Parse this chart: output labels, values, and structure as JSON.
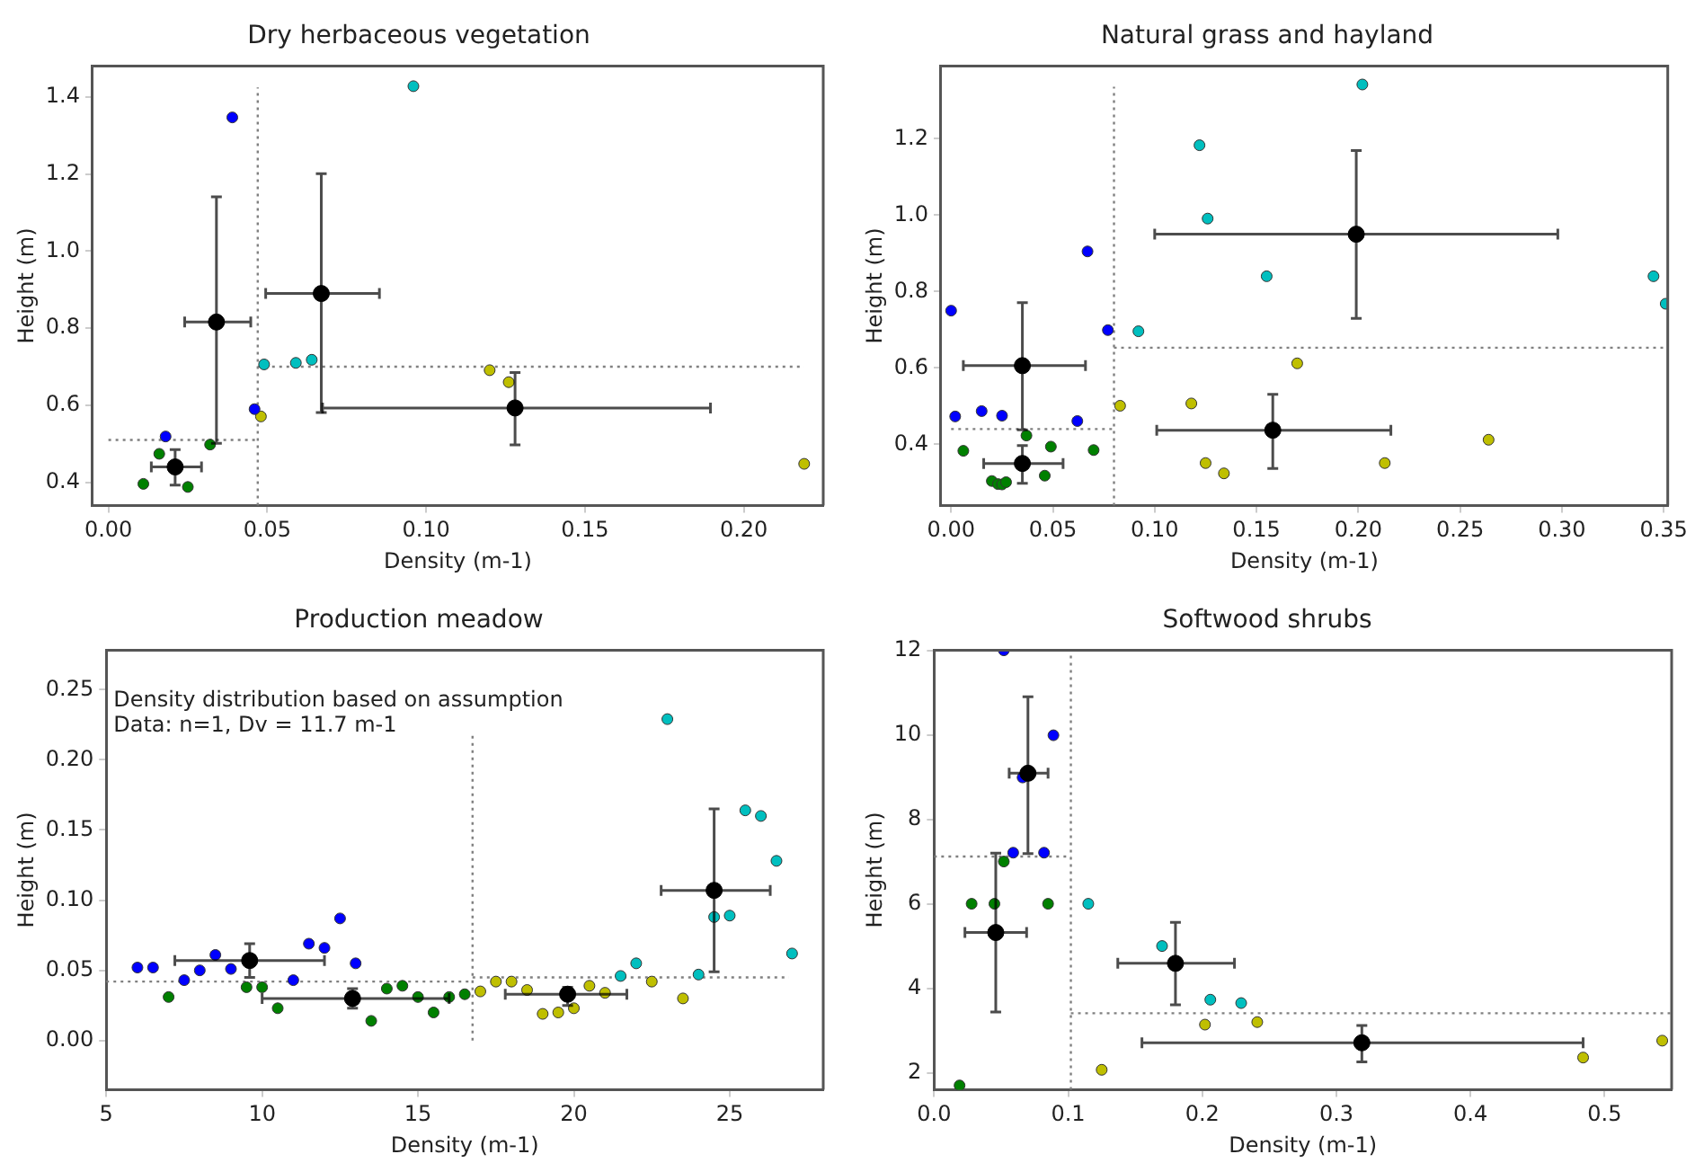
{
  "chart_data": [
    {
      "type": "scatter",
      "title": "Dry herbaceous vegetation",
      "xlabel": "Density (m-1)",
      "ylabel": "Height (m)",
      "xlim": [
        -0.005,
        0.225
      ],
      "ylim": [
        0.34,
        1.48
      ],
      "xticks": [
        {
          "value": 0,
          "label": "0.00"
        },
        0.05,
        {
          "value": 0.1,
          "label": "0.10"
        },
        0.15,
        {
          "value": 0.2,
          "label": "0.20"
        }
      ],
      "yticks": [
        0.4,
        0.6,
        0.8,
        {
          "value": 1,
          "label": "1.0"
        },
        1.2,
        1.4
      ],
      "grid": false,
      "legend": false,
      "marker": "circle",
      "series": [
        {
          "color": "#0000ff",
          "x": [
            0.039,
            0.018,
            0.046
          ],
          "values": [
            1.347,
            0.519,
            0.59
          ]
        },
        {
          "color": "#008000",
          "x": [
            0.011,
            0.016,
            0.025,
            0.032
          ],
          "values": [
            0.396,
            0.474,
            0.388,
            0.498
          ]
        },
        {
          "color": "#00bfbf",
          "x": [
            0.096,
            0.049,
            0.059,
            0.064
          ],
          "values": [
            1.428,
            0.706,
            0.71,
            0.718
          ]
        },
        {
          "color": "#bfbf00",
          "x": [
            0.048,
            0.12,
            0.126,
            0.219
          ],
          "values": [
            0.571,
            0.691,
            0.66,
            0.448
          ]
        },
        {
          "color": "#000000",
          "x": [
            0.021,
            0.034,
            0.067,
            0.128
          ],
          "values": [
            0.44,
            0.816,
            0.89,
            0.593
          ],
          "xerrors": [
            [
              0.0135,
              0.0293
            ],
            [
              0.024,
              0.0448
            ],
            [
              0.0495,
              0.0853
            ],
            [
              0.0674,
              0.1895
            ]
          ],
          "errors": [
            [
              0.393,
              0.485
            ],
            [
              0.501,
              1.141
            ],
            [
              0.581,
              1.201
            ],
            [
              0.497,
              0.685
            ]
          ]
        },
        {
          "type": "line",
          "color": "#808080",
          "line_style": "dotted",
          "marker": "none",
          "x": [
            0.047,
            0.047
          ],
          "values": [
            0.34,
            1.425
          ]
        },
        {
          "type": "line",
          "color": "#808080",
          "line_style": "dotted",
          "marker": "none",
          "x": [
            0,
            0.047
          ],
          "values": [
            0.51,
            0.51
          ]
        },
        {
          "type": "line",
          "color": "#808080",
          "line_style": "dotted",
          "marker": "none",
          "x": [
            0.047,
            0.219
          ],
          "values": [
            0.7,
            0.7
          ]
        }
      ]
    },
    {
      "type": "scatter",
      "title": "Natural grass and hayland",
      "xlabel": "Density (m-1)",
      "ylabel": "Height (m)",
      "xlim": [
        -0.005,
        0.352
      ],
      "ylim": [
        0.24,
        1.39
      ],
      "xticks": [
        {
          "value": 0,
          "label": "0.00"
        },
        0.05,
        {
          "value": 0.1,
          "label": "0.10"
        },
        0.15,
        {
          "value": 0.2,
          "label": "0.20"
        },
        0.25,
        {
          "value": 0.3,
          "label": "0.30"
        },
        0.35
      ],
      "yticks": [
        0.4,
        0.6,
        0.8,
        {
          "value": 1,
          "label": "1.0"
        },
        1.2
      ],
      "grid": false,
      "legend": false,
      "marker": "circle",
      "series": [
        {
          "color": "#0000ff",
          "x": [
            0,
            0.002,
            0.015,
            0.025,
            0.067,
            0.062,
            0.077
          ],
          "values": [
            0.75,
            0.473,
            0.487,
            0.475,
            0.905,
            0.461,
            0.699
          ]
        },
        {
          "color": "#008000",
          "x": [
            0.006,
            0.02,
            0.023,
            0.025,
            0.027,
            0.037,
            0.049,
            0.046,
            0.07
          ],
          "values": [
            0.383,
            0.304,
            0.296,
            0.295,
            0.301,
            0.423,
            0.394,
            0.318,
            0.385
          ]
        },
        {
          "color": "#00bfbf",
          "x": [
            0.202,
            0.122,
            0.126,
            0.155,
            0.092,
            0.345,
            0.351
          ],
          "values": [
            1.342,
            1.183,
            0.991,
            0.84,
            0.696,
            0.84,
            0.768
          ]
        },
        {
          "color": "#bfbf00",
          "x": [
            0.083,
            0.118,
            0.17,
            0.125,
            0.134,
            0.213,
            0.264
          ],
          "values": [
            0.501,
            0.507,
            0.612,
            0.351,
            0.324,
            0.351,
            0.412
          ]
        },
        {
          "color": "#000000",
          "x": [
            0.035,
            0.035,
            0.199,
            0.158
          ],
          "values": [
            0.606,
            0.35,
            0.95,
            0.437
          ],
          "xerrors": [
            [
              0.006,
              0.066
            ],
            [
              0.016,
              0.055
            ],
            [
              0.1,
              0.298
            ],
            [
              0.101,
              0.216
            ]
          ],
          "errors": [
            [
              0.438,
              0.771
            ],
            [
              0.298,
              0.397
            ],
            [
              0.73,
              1.169
            ],
            [
              0.337,
              0.531
            ]
          ]
        },
        {
          "type": "line",
          "color": "#808080",
          "line_style": "dotted",
          "marker": "none",
          "x": [
            0.08,
            0.08
          ],
          "values": [
            0.24,
            1.336
          ]
        },
        {
          "type": "line",
          "color": "#808080",
          "line_style": "dotted",
          "marker": "none",
          "x": [
            0,
            0.08
          ],
          "values": [
            0.44,
            0.44
          ]
        },
        {
          "type": "line",
          "color": "#808080",
          "line_style": "dotted",
          "marker": "none",
          "x": [
            0.08,
            0.35
          ],
          "values": [
            0.653,
            0.653
          ]
        }
      ]
    },
    {
      "type": "scatter",
      "title": "Production meadow",
      "xlabel": "Density (m-1)",
      "ylabel": "Height (m)",
      "xlim": [
        5,
        28
      ],
      "ylim": [
        -0.035,
        0.278
      ],
      "xticks": [
        5,
        10,
        15,
        20,
        25
      ],
      "yticks": [
        {
          "value": 0,
          "label": "0.00"
        },
        0.05,
        {
          "value": 0.1,
          "label": "0.10"
        },
        0.15,
        {
          "value": 0.2,
          "label": "0.20"
        },
        0.25
      ],
      "grid": false,
      "legend": false,
      "marker": "circle",
      "annotations": [
        "Density distribution based on assumption",
        "Data: n=1, Dv = 11.7 m-1"
      ],
      "series": [
        {
          "color": "#0000ff",
          "x": [
            6,
            6.5,
            7.5,
            8,
            8.5,
            9,
            11,
            11.5,
            12,
            12.5,
            13
          ],
          "values": [
            0.052,
            0.052,
            0.043,
            0.05,
            0.061,
            0.051,
            0.043,
            0.069,
            0.066,
            0.087,
            0.055
          ]
        },
        {
          "color": "#008000",
          "x": [
            7,
            9.5,
            10,
            10.5,
            13.5,
            14,
            14.5,
            15,
            15.5,
            16,
            16.5
          ],
          "values": [
            0.031,
            0.038,
            0.038,
            0.023,
            0.014,
            0.037,
            0.039,
            0.031,
            0.02,
            0.031,
            0.033
          ]
        },
        {
          "color": "#bfbf00",
          "x": [
            17,
            17.5,
            18,
            18.5,
            19,
            19.5,
            20,
            20.5,
            21,
            22.5,
            23.5
          ],
          "values": [
            0.035,
            0.042,
            0.042,
            0.036,
            0.019,
            0.02,
            0.023,
            0.039,
            0.034,
            0.042,
            0.03
          ]
        },
        {
          "color": "#00bfbf",
          "x": [
            21.5,
            22,
            23,
            24,
            24.5,
            25,
            25.5,
            26,
            26.5,
            27
          ],
          "values": [
            0.046,
            0.055,
            0.229,
            0.047,
            0.088,
            0.089,
            0.164,
            0.16,
            0.128,
            0.062
          ]
        },
        {
          "color": "#000000",
          "x": [
            9.6,
            12.9,
            19.8,
            24.5
          ],
          "values": [
            0.057,
            0.03,
            0.033,
            0.107
          ],
          "xerrors": [
            [
              7.2,
              12
            ],
            [
              10,
              16
            ],
            [
              17.8,
              21.7
            ],
            [
              22.8,
              26.3
            ]
          ],
          "errors": [
            [
              0.045,
              0.069
            ],
            [
              0.023,
              0.037
            ],
            [
              0.025,
              0.038
            ],
            [
              0.049,
              0.165
            ]
          ]
        },
        {
          "type": "line",
          "color": "#808080",
          "line_style": "dotted",
          "marker": "none",
          "x": [
            16.75,
            16.75
          ],
          "values": [
            0,
            0.219
          ]
        },
        {
          "type": "line",
          "color": "#808080",
          "line_style": "dotted",
          "marker": "none",
          "x": [
            5,
            16.75
          ],
          "values": [
            0.042,
            0.042
          ]
        },
        {
          "type": "line",
          "color": "#808080",
          "line_style": "dotted",
          "marker": "none",
          "x": [
            16.75,
            26.9
          ],
          "values": [
            0.045,
            0.045
          ]
        }
      ]
    },
    {
      "type": "scatter",
      "title": "Softwood shrubs",
      "xlabel": "Density (m-1)",
      "ylabel": "Height (m)",
      "xlim": [
        0,
        0.55
      ],
      "ylim": [
        1.6,
        12
      ],
      "xticks": [
        {
          "value": 0,
          "label": "0.0"
        },
        0.1,
        0.2,
        0.3,
        0.4,
        0.5
      ],
      "yticks": [
        2,
        4,
        6,
        8,
        10,
        12
      ],
      "grid": false,
      "legend": false,
      "marker": "circle",
      "series": [
        {
          "color": "#0000ff",
          "x": [
            0.052,
            0.089,
            0.066,
            0.059,
            0.082
          ],
          "values": [
            12,
            9.99,
            8.99,
            7.21,
            7.21
          ]
        },
        {
          "color": "#008000",
          "x": [
            0.019,
            0.028,
            0.045,
            0.052,
            0.085
          ],
          "values": [
            1.7,
            6,
            6,
            7,
            6
          ]
        },
        {
          "color": "#00bfbf",
          "x": [
            0.115,
            0.17,
            0.206,
            0.229
          ],
          "values": [
            6,
            5,
            3.73,
            3.65
          ]
        },
        {
          "color": "#bfbf00",
          "x": [
            0.125,
            0.202,
            0.241,
            0.484,
            0.543
          ],
          "values": [
            2.07,
            3.14,
            3.2,
            2.36,
            2.76
          ]
        },
        {
          "color": "#000000",
          "x": [
            0.046,
            0.07,
            0.18,
            0.319
          ],
          "values": [
            5.32,
            9.09,
            4.59,
            2.71
          ],
          "xerrors": [
            [
              0.023,
              0.069
            ],
            [
              0.056,
              0.085
            ],
            [
              0.137,
              0.224
            ],
            [
              0.155,
              0.484
            ]
          ],
          "errors": [
            [
              3.44,
              7.2
            ],
            [
              7.19,
              10.9
            ],
            [
              3.61,
              5.56
            ],
            [
              2.26,
              3.12
            ]
          ]
        },
        {
          "type": "line",
          "color": "#808080",
          "line_style": "dotted",
          "marker": "none",
          "x": [
            0.102,
            0.102
          ],
          "values": [
            1.6,
            12
          ]
        },
        {
          "type": "line",
          "color": "#808080",
          "line_style": "dotted",
          "marker": "none",
          "x": [
            0,
            0.102
          ],
          "values": [
            7.12,
            7.12
          ]
        },
        {
          "type": "line",
          "color": "#808080",
          "line_style": "dotted",
          "marker": "none",
          "x": [
            0.102,
            0.55
          ],
          "values": [
            3.41,
            3.41
          ]
        }
      ]
    }
  ]
}
